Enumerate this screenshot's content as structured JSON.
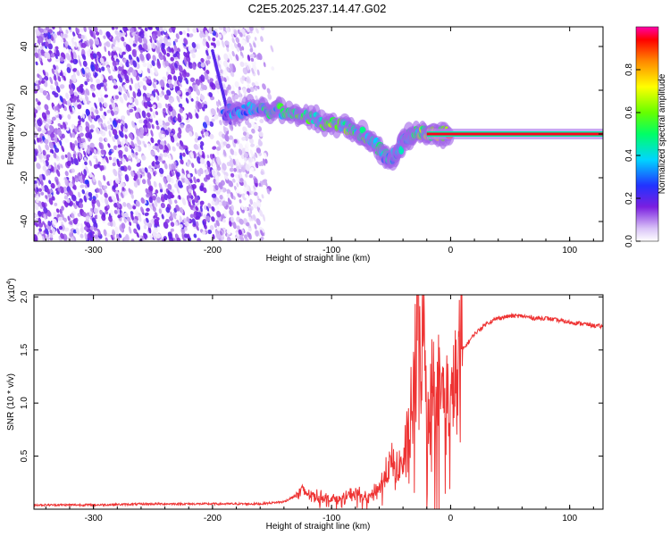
{
  "figure": {
    "title": "C2E5.2025.237.14.47.G02"
  },
  "chart_data": [
    {
      "type": "heatmap",
      "xlabel": "Height of straight line (km)",
      "ylabel": "Frequency (Hz)",
      "xlim": [
        -350,
        128
      ],
      "ylim": [
        -49,
        49
      ],
      "xticks": [
        -300,
        -200,
        -100,
        0,
        100
      ],
      "yticks": [
        -40,
        -20,
        0,
        20,
        40
      ],
      "colorbar": {
        "label": "Normalized spectral amplitude",
        "range": [
          0,
          1
        ],
        "ticks": [
          "0.0",
          "0.2",
          "0.4",
          "0.6",
          "0.8"
        ]
      },
      "features": {
        "noise_region_x": [
          -350,
          -148
        ],
        "streak_x": [
          -200,
          -185
        ],
        "streak_y": [
          38,
          5
        ],
        "signal_ridge": [
          {
            "x": -190,
            "y": 10,
            "amp": 0.3
          },
          {
            "x": -170,
            "y": 11,
            "amp": 0.45
          },
          {
            "x": -150,
            "y": 11,
            "amp": 0.5
          },
          {
            "x": -130,
            "y": 10,
            "amp": 0.55
          },
          {
            "x": -110,
            "y": 6,
            "amp": 0.6
          },
          {
            "x": -90,
            "y": 4,
            "amp": 0.6
          },
          {
            "x": -75,
            "y": 0,
            "amp": 0.55
          },
          {
            "x": -60,
            "y": -7,
            "amp": 0.5
          },
          {
            "x": -50,
            "y": -12,
            "amp": 0.45
          },
          {
            "x": -40,
            "y": -4,
            "amp": 0.45
          },
          {
            "x": -30,
            "y": 2,
            "amp": 0.55
          },
          {
            "x": -15,
            "y": 1,
            "amp": 0.7
          },
          {
            "x": 0,
            "y": 0,
            "amp": 0.85
          }
        ],
        "carrier_line": {
          "x": [
            -20,
            128
          ],
          "y": 0,
          "amp": 0.95
        }
      }
    },
    {
      "type": "line",
      "xlabel": "Height of straight line (km)",
      "ylabel": "SNR (10 * v/v)",
      "yscale_note": "(x10",
      "yscale_exponent": "4",
      "xlim": [
        -350,
        128
      ],
      "ylim": [
        0,
        2.02
      ],
      "xticks": [
        -300,
        -200,
        -100,
        0,
        100
      ],
      "yticks": [
        "0.5",
        "1.0",
        "1.5",
        "2.0"
      ],
      "color": "#ee3333",
      "series": [
        {
          "x": [
            -350,
            -300,
            -250,
            -200,
            -160,
            -140,
            -130,
            -125,
            -120,
            -110,
            -100,
            -90,
            -80,
            -70,
            -60,
            -55,
            -50,
            -45,
            -40,
            -35,
            -30,
            -27,
            -25,
            -22,
            -20,
            -15,
            -10,
            -5,
            0,
            5,
            10,
            20,
            30,
            40,
            50,
            60,
            70,
            80,
            90,
            100,
            110,
            120,
            128
          ],
          "values": [
            0.03,
            0.03,
            0.04,
            0.04,
            0.04,
            0.06,
            0.12,
            0.18,
            0.15,
            0.12,
            0.1,
            0.1,
            0.16,
            0.1,
            0.2,
            0.3,
            0.42,
            0.35,
            0.45,
            0.7,
            1.2,
            1.95,
            1.5,
            1.7,
            0.9,
            1.2,
            1.1,
            1.05,
            1.0,
            1.15,
            1.5,
            1.65,
            1.75,
            1.8,
            1.82,
            1.82,
            1.8,
            1.8,
            1.78,
            1.76,
            1.75,
            1.73,
            1.72
          ]
        }
      ]
    }
  ]
}
